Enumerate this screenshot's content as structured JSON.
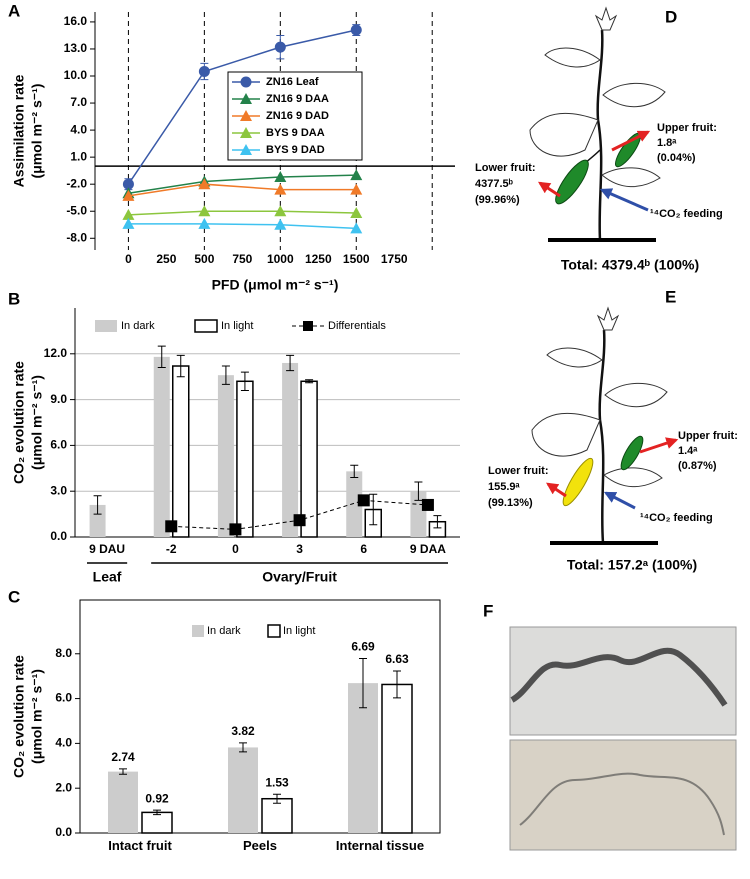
{
  "chart_data": [
    {
      "type": "line",
      "panel": "A",
      "y_label": [
        "Assimilation rate",
        "(μmol m⁻² s⁻¹)"
      ],
      "x_label": "PFD (μmol m⁻² s⁻¹)",
      "x": [
        0,
        500,
        1000,
        1500
      ],
      "xlim": [
        -220,
        2150
      ],
      "xticks": [
        0,
        250,
        500,
        750,
        1000,
        1250,
        1500,
        1750
      ],
      "x_gridlines": [
        0,
        500,
        1000,
        1500,
        2000
      ],
      "ylim": [
        -9.3,
        17.1
      ],
      "yticks": [
        {
          "value": 16,
          "label": "16.0"
        },
        {
          "value": 13,
          "label": "13.0"
        },
        {
          "value": 10,
          "label": "10.0"
        },
        {
          "value": 7,
          "label": "7.0"
        },
        {
          "value": 4,
          "label": "4.0"
        },
        {
          "value": 1,
          "label": "1.0"
        },
        {
          "value": -2,
          "label": "-2.0"
        },
        {
          "value": -5,
          "label": "-5.0"
        },
        {
          "value": -8,
          "label": "-8.0"
        }
      ],
      "grid": "dashed",
      "series": [
        {
          "name": "ZN16 Leaf",
          "color": "#3a5aa8",
          "marker": "circle",
          "values": [
            -2.0,
            10.5,
            13.2,
            15.1
          ],
          "errors": [
            0.6,
            0.9,
            1.3,
            0.6
          ]
        },
        {
          "name": "ZN16 9 DAA",
          "color": "#23824a",
          "marker": "triangle",
          "values": [
            -3.0,
            -1.7,
            -1.2,
            -1.0
          ]
        },
        {
          "name": "ZN16 9 DAD",
          "color": "#f07a28",
          "marker": "triangle",
          "values": [
            -3.3,
            -2.0,
            -2.6,
            -2.6
          ]
        },
        {
          "name": "BYS 9 DAA",
          "color": "#8cc63e",
          "marker": "triangle",
          "values": [
            -5.4,
            -5.0,
            -5.0,
            -5.2
          ]
        },
        {
          "name": "BYS 9 DAD",
          "color": "#3fc2f0",
          "marker": "triangle",
          "values": [
            -6.4,
            -6.4,
            -6.5,
            -6.9
          ]
        }
      ]
    },
    {
      "type": "bar",
      "panel": "B",
      "y_label": [
        "CO₂ evolution rate",
        "(μmol m⁻² s⁻¹)"
      ],
      "categories": [
        "9 DAU",
        "-2",
        "0",
        "3",
        "6",
        "9 DAA"
      ],
      "groups": [
        "Leaf",
        "Ovary/Fruit"
      ],
      "ylim": [
        0,
        15
      ],
      "yticks": [
        {
          "value": 0,
          "label": "0.0"
        },
        {
          "value": 3,
          "label": "3.0"
        },
        {
          "value": 6,
          "label": "6.0"
        },
        {
          "value": 9,
          "label": "9.0"
        },
        {
          "value": 12,
          "label": "12.0"
        }
      ],
      "grid": "horizontal",
      "series": [
        {
          "name": "In dark",
          "type": "bar",
          "color": "#cccccc",
          "values": [
            2.1,
            11.8,
            10.6,
            11.4,
            4.3,
            3.0
          ],
          "errors": [
            0.6,
            0.7,
            0.6,
            0.5,
            0.4,
            0.6
          ]
        },
        {
          "name": "In light",
          "type": "bar",
          "color": "#ffffff",
          "edgecolor": "#000000",
          "values": [
            null,
            11.2,
            10.2,
            10.2,
            1.8,
            1.0
          ],
          "errors": [
            null,
            0.7,
            0.6,
            0.1,
            1.0,
            0.4
          ]
        },
        {
          "name": "Differentials",
          "type": "line",
          "color": "#000000",
          "values": [
            null,
            0.7,
            0.5,
            1.1,
            2.4,
            2.1
          ]
        }
      ]
    },
    {
      "type": "bar",
      "panel": "C",
      "y_label": [
        "CO₂ evolution rate",
        "(μmol m⁻² s⁻¹)"
      ],
      "categories": [
        "Intact fruit",
        "Peels",
        "Internal tissue"
      ],
      "ylim": [
        0,
        10.4
      ],
      "yticks": [
        {
          "value": 0,
          "label": "0.0"
        },
        {
          "value": 2,
          "label": "2.0"
        },
        {
          "value": 4,
          "label": "4.0"
        },
        {
          "value": 6,
          "label": "6.0"
        },
        {
          "value": 8,
          "label": "8.0"
        }
      ],
      "show_values": true,
      "series": [
        {
          "name": "In dark",
          "type": "bar",
          "color": "#cccccc",
          "values": [
            2.74,
            3.82,
            6.69
          ],
          "errors": [
            0.12,
            0.2,
            1.1
          ]
        },
        {
          "name": "In light",
          "type": "bar",
          "color": "#ffffff",
          "edgecolor": "#000000",
          "values": [
            0.92,
            1.53,
            6.63
          ],
          "errors": [
            0.1,
            0.2,
            0.6
          ]
        }
      ]
    }
  ],
  "diagrams": [
    {
      "panel": "D",
      "upper_fruit": [
        "Upper fruit:",
        "1.8ᵃ",
        "(0.04%)"
      ],
      "lower_fruit": [
        "Lower fruit:",
        "4377.5ᵇ",
        "(99.96%)"
      ],
      "feeding": "¹⁴CO₂ feeding",
      "total": "Total: 4379.4ᵇ (100%)"
    },
    {
      "panel": "E",
      "upper_fruit": [
        "Upper fruit:",
        "1.4ᵃ",
        "(0.87%)"
      ],
      "lower_fruit": [
        "Lower fruit:",
        "155.9ᵃ",
        "(99.13%)"
      ],
      "feeding": "¹⁴CO₂ feeding",
      "total": "Total: 157.2ᵃ (100%)"
    }
  ],
  "images": {
    "panel": "F"
  }
}
